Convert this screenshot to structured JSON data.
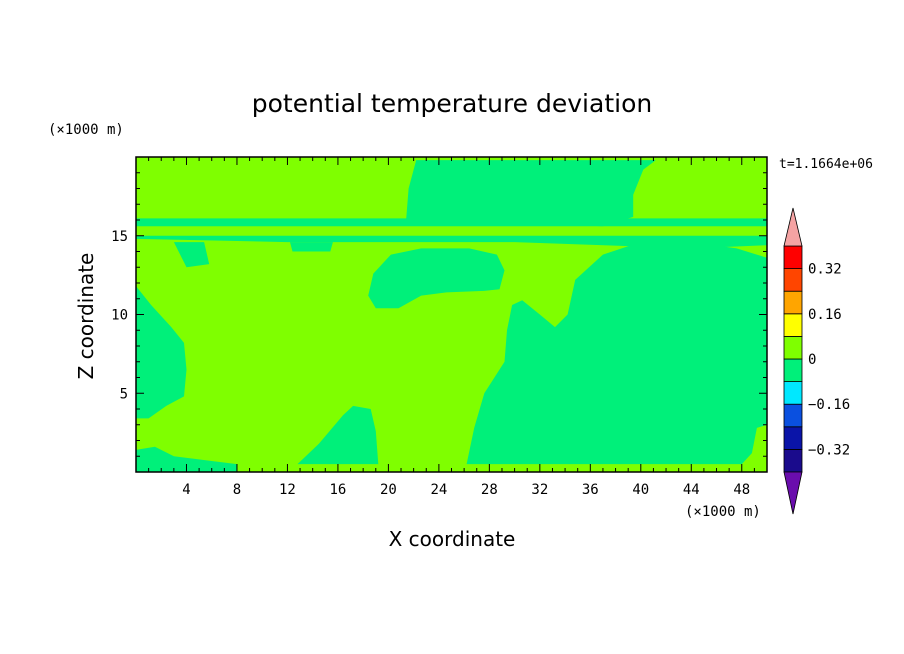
{
  "chart_data": {
    "type": "heatmap",
    "title": "potential temperature deviation",
    "xlabel": "X coordinate",
    "ylabel": "Z coordinate",
    "x_unit": "(×1000 m)",
    "y_unit": "(×1000 m)",
    "time_label": "t=1.1664e+06",
    "xlim": [
      0,
      50
    ],
    "ylim": [
      0,
      20
    ],
    "x_ticks": [
      4,
      8,
      12,
      16,
      20,
      24,
      28,
      32,
      36,
      40,
      44,
      48
    ],
    "y_ticks": [
      5,
      10,
      15
    ],
    "colorbar": {
      "levels": [
        -0.4,
        -0.32,
        -0.24,
        -0.16,
        -0.08,
        0,
        0.08,
        0.16,
        0.24,
        0.32,
        0.4
      ],
      "colors": [
        "#1a0b8c",
        "#0a14a8",
        "#0a50e0",
        "#00e8ff",
        "#00f07a",
        "#7fff00",
        "#ffff00",
        "#ffa500",
        "#ff4500",
        "#ff0000"
      ],
      "under_color": "#6a0dad",
      "over_color": "#f5a3a3",
      "labels": [
        {
          "value": -0.32,
          "text": "−0.32"
        },
        {
          "value": -0.16,
          "text": "−0.16"
        },
        {
          "value": 0,
          "text": "0"
        },
        {
          "value": 0.16,
          "text": "0.16"
        },
        {
          "value": 0.32,
          "text": "0.32"
        }
      ]
    },
    "field": {
      "background_level_color": "#7fff00",
      "regions": [
        {
          "name": "left-cold-pool",
          "color": "#00f07a",
          "polygon": [
            [
              0,
              11.8
            ],
            [
              1.2,
              10.6
            ],
            [
              2.8,
              9.2
            ],
            [
              3.8,
              8.2
            ],
            [
              4,
              6.5
            ],
            [
              3.8,
              4.8
            ],
            [
              2.4,
              4.2
            ],
            [
              1,
              3.4
            ],
            [
              0,
              3.4
            ]
          ]
        },
        {
          "name": "bottom-left-strip",
          "color": "#00f07a",
          "polygon": [
            [
              0,
              1.4
            ],
            [
              1.5,
              1.6
            ],
            [
              3,
              1
            ],
            [
              6,
              0.7
            ],
            [
              8,
              0.5
            ],
            [
              8,
              0
            ],
            [
              0,
              0
            ]
          ]
        },
        {
          "name": "lower-central-lobe",
          "color": "#00f07a",
          "polygon": [
            [
              12.8,
              0.5
            ],
            [
              14.5,
              1.8
            ],
            [
              16.4,
              3.6
            ],
            [
              17.2,
              4.2
            ],
            [
              18.6,
              4
            ],
            [
              19,
              2.6
            ],
            [
              19.2,
              0.5
            ]
          ]
        },
        {
          "name": "upper-central-plume",
          "color": "#00f07a",
          "polygon": [
            [
              18.4,
              11.2
            ],
            [
              18.8,
              12.6
            ],
            [
              20.2,
              13.8
            ],
            [
              22.6,
              14.2
            ],
            [
              24.6,
              14.2
            ],
            [
              26.4,
              14.2
            ],
            [
              28.6,
              13.8
            ],
            [
              29.2,
              12.8
            ],
            [
              28.8,
              11.6
            ],
            [
              27.6,
              11.5
            ],
            [
              24.6,
              11.4
            ],
            [
              22.6,
              11.2
            ],
            [
              20.8,
              10.4
            ],
            [
              19,
              10.4
            ]
          ]
        },
        {
          "name": "right-cold-block",
          "color": "#00f07a",
          "polygon": [
            [
              26.2,
              0.5
            ],
            [
              26.8,
              2.8
            ],
            [
              27.6,
              5
            ],
            [
              29.2,
              7
            ],
            [
              29.4,
              9
            ],
            [
              29.8,
              10.6
            ],
            [
              30.6,
              10.9
            ],
            [
              32,
              10
            ],
            [
              33.2,
              9.2
            ],
            [
              34.2,
              10
            ],
            [
              34.8,
              12.2
            ],
            [
              37,
              13.8
            ],
            [
              40,
              14.6
            ],
            [
              44,
              14.6
            ],
            [
              47.6,
              14.2
            ],
            [
              50,
              13.6
            ],
            [
              50,
              3
            ],
            [
              49.2,
              2.8
            ],
            [
              48.8,
              1.2
            ],
            [
              48,
              0.5
            ]
          ]
        },
        {
          "name": "upper-right-dome",
          "color": "#00f07a",
          "polygon": [
            [
              21.4,
              16
            ],
            [
              21.6,
              18
            ],
            [
              22.2,
              19.8
            ],
            [
              41.2,
              19.8
            ],
            [
              40.2,
              19.2
            ],
            [
              39.4,
              17.6
            ],
            [
              39.4,
              16.2
            ],
            [
              37,
              15.6
            ],
            [
              30,
              15.8
            ],
            [
              24,
              16
            ]
          ]
        },
        {
          "name": "tropopause-band-upper",
          "color": "#00f07a",
          "polygon": [
            [
              0,
              16.1
            ],
            [
              50,
              16.1
            ],
            [
              50,
              15.6
            ],
            [
              0,
              15.6
            ]
          ]
        },
        {
          "name": "tropopause-band-lower",
          "color": "#00f07a",
          "polygon": [
            [
              0,
              15
            ],
            [
              50,
              15
            ],
            [
              50,
              14.4
            ],
            [
              44,
              14.2
            ],
            [
              30,
              14.6
            ],
            [
              12,
              14.6
            ],
            [
              0,
              14.8
            ]
          ]
        },
        {
          "name": "speckle-left",
          "color": "#00f07a",
          "polygon": [
            [
              3,
              14.6
            ],
            [
              5.4,
              14.6
            ],
            [
              5.8,
              13.2
            ],
            [
              4,
              13
            ]
          ]
        },
        {
          "name": "speckle-mid",
          "color": "#00f07a",
          "polygon": [
            [
              12.2,
              14.6
            ],
            [
              15.6,
              14.6
            ],
            [
              15.4,
              14
            ],
            [
              12.4,
              14
            ]
          ]
        },
        {
          "name": "speckle-right",
          "color": "#00f07a",
          "polygon": [
            [
              43,
              14.6
            ],
            [
              46,
              14.6
            ],
            [
              46.4,
              13.8
            ],
            [
              43.6,
              13.8
            ]
          ]
        }
      ]
    }
  }
}
